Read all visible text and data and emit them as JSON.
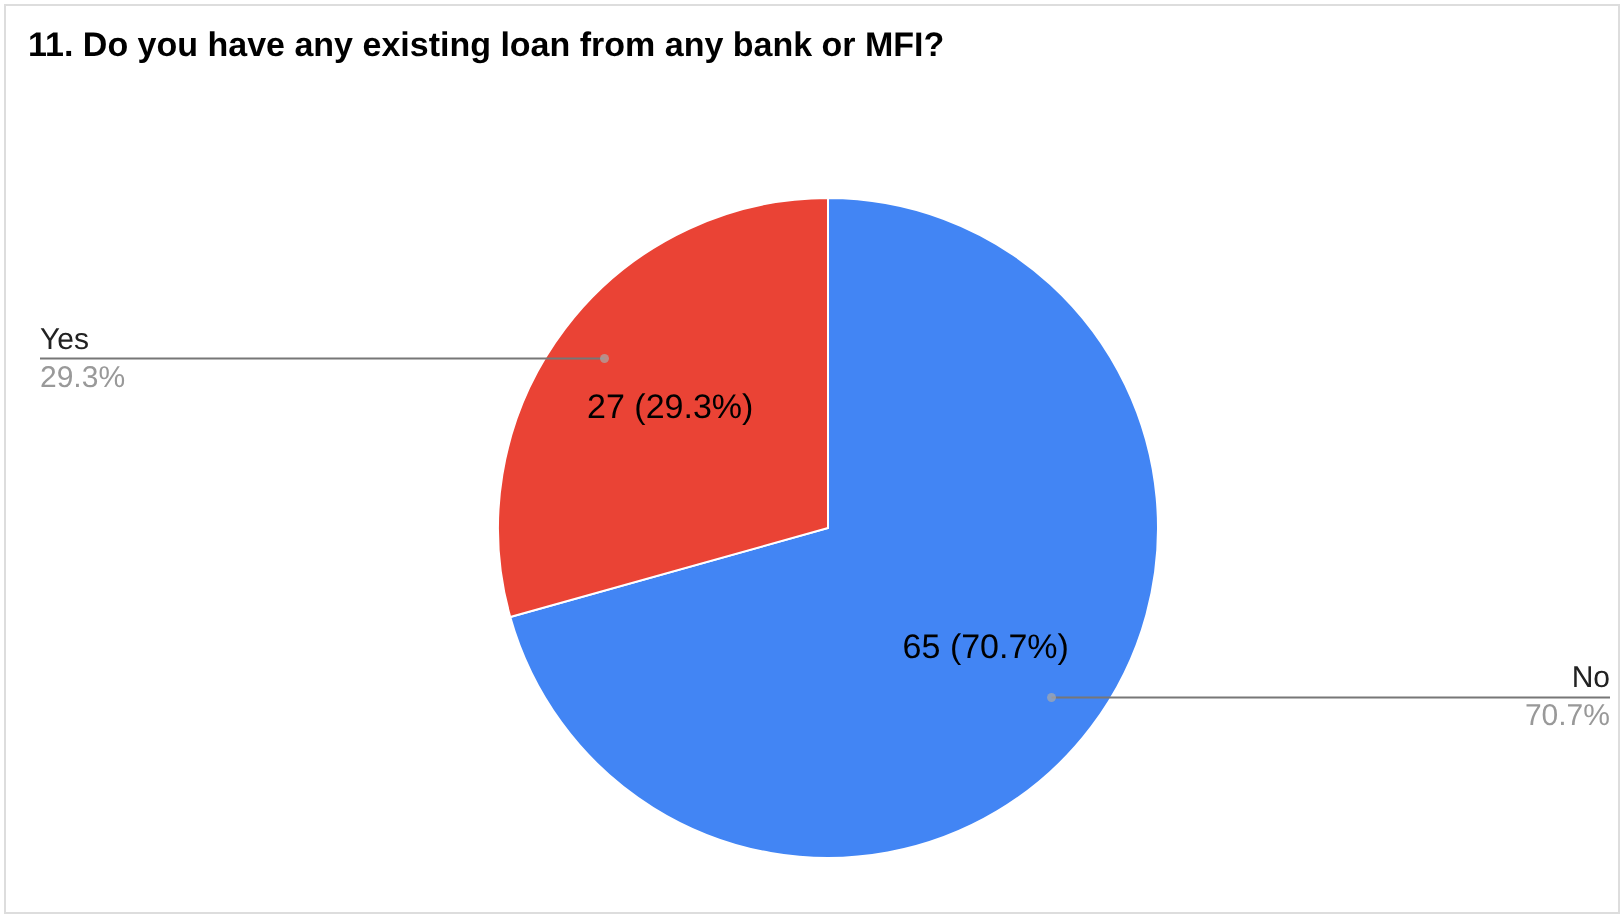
{
  "chart_data": {
    "type": "pie",
    "title": "11. Do you have any existing loan from any bank or MFI?",
    "categories": [
      "No",
      "Yes"
    ],
    "values": [
      65,
      27
    ],
    "colors": [
      "#4285f4",
      "#ea4335"
    ],
    "value_labels": [
      "65 (70.7%)",
      "27 (29.3%)"
    ],
    "annotations": [
      "70.7%",
      "29.3%"
    ]
  }
}
